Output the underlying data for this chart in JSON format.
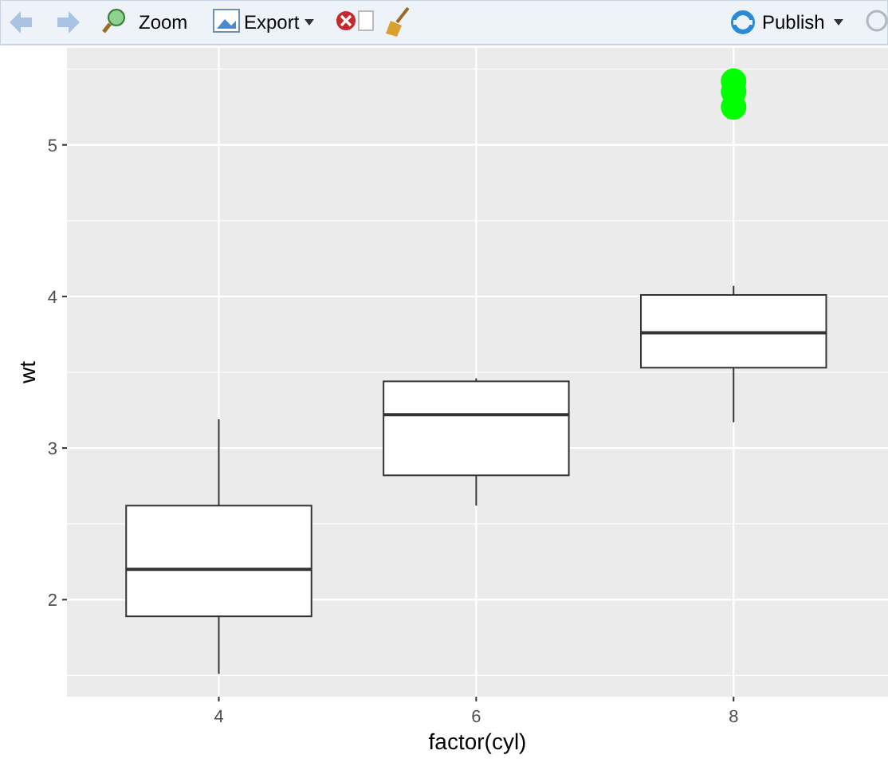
{
  "chart_data": {
    "type": "box",
    "xlabel": "factor(cyl)",
    "ylabel": "wt",
    "categories": [
      "4",
      "6",
      "8"
    ],
    "boxes": [
      {
        "low": 1.51,
        "q1": 1.89,
        "median": 2.2,
        "q3": 2.62,
        "high": 3.19
      },
      {
        "low": 2.62,
        "q1": 2.82,
        "median": 3.22,
        "q3": 3.44,
        "high": 3.46
      },
      {
        "low": 3.17,
        "q1": 3.53,
        "median": 3.76,
        "q3": 4.01,
        "high": 4.07
      }
    ],
    "series": [
      {
        "type": "scatter",
        "color": "#00ff00",
        "x": [
          "8",
          "8",
          "8"
        ],
        "values": [
          5.25,
          5.35,
          5.42
        ]
      }
    ],
    "ylim": [
      1.36,
      5.64
    ],
    "yticks": [
      {
        "value": 1.5,
        "label": null
      },
      2,
      {
        "value": 2.5,
        "label": null
      },
      3,
      {
        "value": 3.5,
        "label": null
      },
      4,
      {
        "value": 4.5,
        "label": null
      },
      5,
      {
        "value": 5.5,
        "label": null
      }
    ],
    "grid": true,
    "annotations": [
      "Zoom",
      "Export",
      "Publish"
    ]
  }
}
